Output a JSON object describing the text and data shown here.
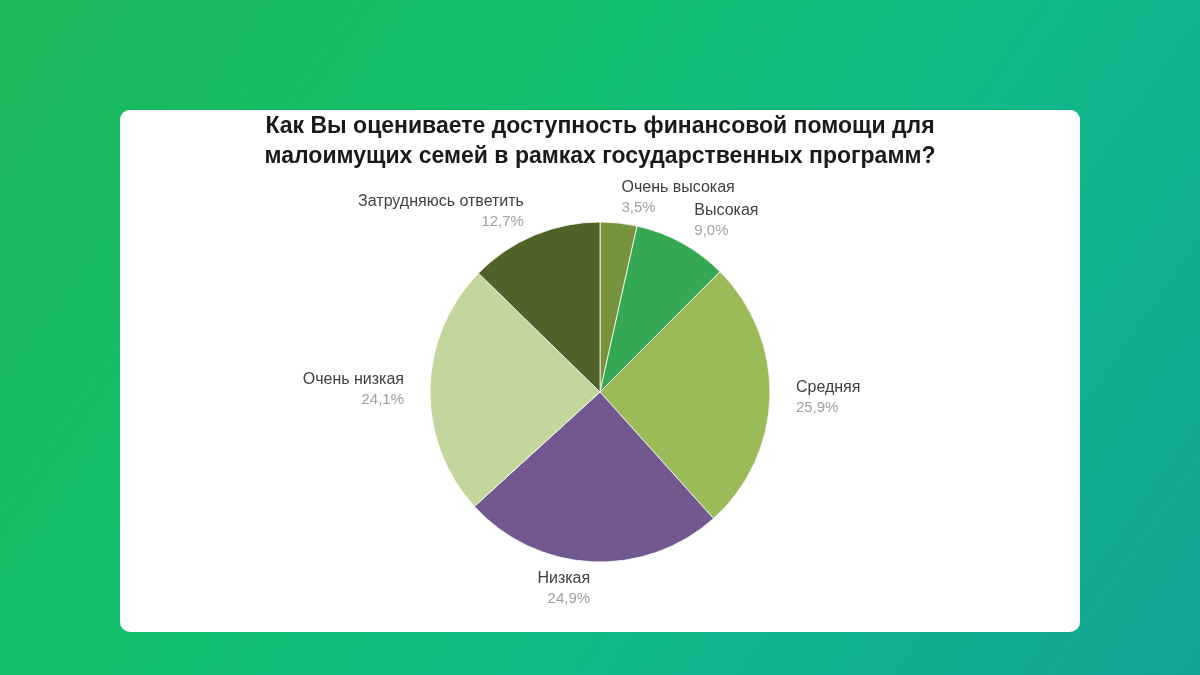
{
  "chart_data": {
    "type": "pie",
    "title": "Как Вы оцениваете доступность финансовой помощи для малоимущих семей в рамках государственных программ?",
    "categories": [
      "Очень высокая",
      "Высокая",
      "Средняя",
      "Низкая",
      "Очень низкая",
      "Затрудняюсь ответить"
    ],
    "values": [
      3.5,
      9.0,
      25.9,
      24.9,
      24.1,
      12.7
    ],
    "value_labels": [
      "3,5%",
      "9,0%",
      "25,9%",
      "24,9%",
      "24,1%",
      "12,7%"
    ],
    "colors": [
      "#77933c",
      "#35a853",
      "#9bbb59",
      "#71588f",
      "#c3d69b",
      "#4f6228"
    ]
  }
}
